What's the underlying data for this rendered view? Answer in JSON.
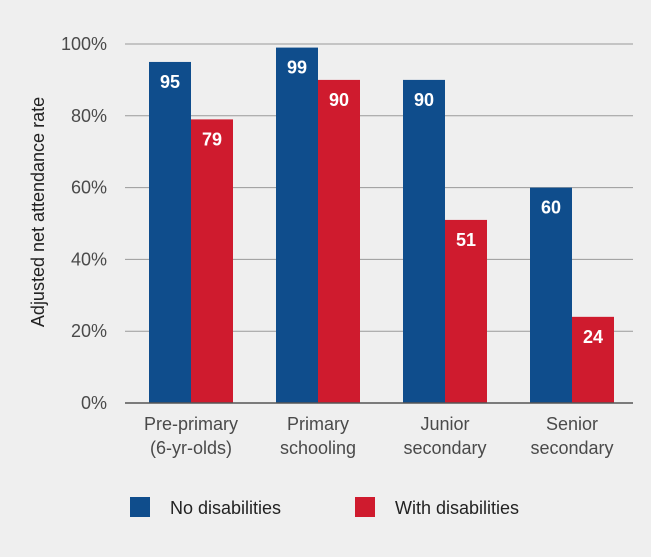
{
  "chart_data": {
    "type": "bar",
    "ylabel": "Adjusted net attendance rate",
    "ylim": [
      0,
      100
    ],
    "yticks": [
      "0%",
      "20%",
      "40%",
      "60%",
      "80%",
      "100%"
    ],
    "ytick_values": [
      0,
      20,
      40,
      60,
      80,
      100
    ],
    "grid": true,
    "legend_position": "bottom",
    "categories": [
      [
        "Pre-primary",
        "(6-yr-olds)"
      ],
      [
        "Primary",
        "schooling"
      ],
      [
        "Junior",
        "secondary"
      ],
      [
        "Senior",
        "secondary"
      ]
    ],
    "series": [
      {
        "name": "No disabilities",
        "color": "#0f4d8c",
        "values": [
          95,
          99,
          90,
          60
        ]
      },
      {
        "name": "With disabilities",
        "color": "#cf1b2e",
        "values": [
          79,
          90,
          51,
          24
        ]
      }
    ]
  }
}
